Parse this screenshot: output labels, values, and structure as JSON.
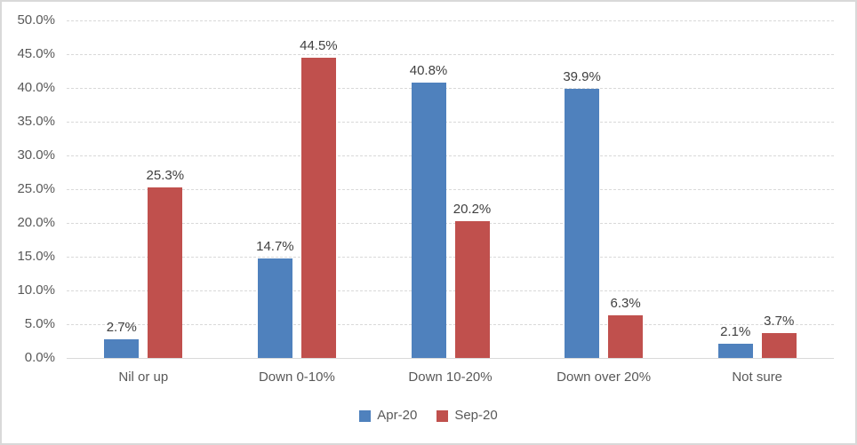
{
  "chart_data": {
    "type": "bar",
    "title": "",
    "xlabel": "",
    "ylabel": "",
    "categories": [
      "Nil or up",
      "Down 0-10%",
      "Down 10-20%",
      "Down over 20%",
      "Not sure"
    ],
    "series": [
      {
        "name": "Apr-20",
        "color": "#4F81BD",
        "values": [
          2.7,
          14.7,
          40.8,
          39.9,
          2.1
        ],
        "labels": [
          "2.7%",
          "14.7%",
          "40.8%",
          "39.9%",
          "2.1%"
        ]
      },
      {
        "name": "Sep-20",
        "color": "#C0504D",
        "values": [
          25.3,
          44.5,
          20.2,
          6.3,
          3.7
        ],
        "labels": [
          "25.3%",
          "44.5%",
          "20.2%",
          "6.3%",
          "3.7%"
        ]
      }
    ],
    "ylim": [
      0,
      50
    ],
    "ytick_step": 5,
    "ytick_labels": [
      "0.0%",
      "5.0%",
      "10.0%",
      "15.0%",
      "20.0%",
      "25.0%",
      "30.0%",
      "35.0%",
      "40.0%",
      "45.0%",
      "50.0%"
    ],
    "grid": true,
    "legend_position": "bottom",
    "legend_labels": [
      "Apr-20",
      "Sep-20"
    ]
  },
  "styles": {
    "apr_color": "#4F81BD",
    "sep_color": "#C0504D",
    "gridline_color": "#D9D9D9",
    "frame_border_color": "#D9D9D9",
    "axis_text_color": "#595959",
    "data_label_color": "#404040",
    "background": "#FFFFFF"
  }
}
